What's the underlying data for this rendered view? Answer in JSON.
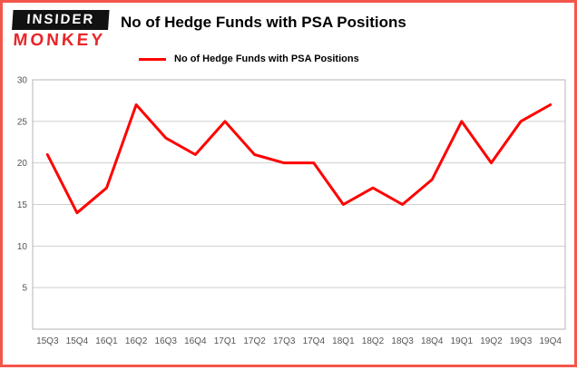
{
  "logo": {
    "top": "INSIDER",
    "bottom": "MONKEY"
  },
  "header": {
    "title": "No of Hedge Funds with PSA Positions"
  },
  "legend": {
    "label": "No of Hedge Funds with PSA Positions"
  },
  "colors": {
    "line": "#ff0000",
    "border": "#f3564a",
    "grid": "#cfcfcf",
    "plot_border": "#b5b5b5",
    "tick_text": "#555555"
  },
  "chart_data": {
    "type": "line",
    "categories": [
      "15Q3",
      "15Q4",
      "16Q1",
      "16Q2",
      "16Q3",
      "16Q4",
      "17Q1",
      "17Q2",
      "17Q3",
      "17Q4",
      "18Q1",
      "18Q2",
      "18Q3",
      "18Q4",
      "19Q1",
      "19Q2",
      "19Q3",
      "19Q4"
    ],
    "values": [
      21,
      14,
      17,
      27,
      23,
      21,
      25,
      21,
      20,
      20,
      15,
      17,
      15,
      18,
      25,
      20,
      25,
      27
    ],
    "title": "No of Hedge Funds with PSA Positions",
    "xlabel": "",
    "ylabel": "",
    "ylim": [
      0,
      30
    ],
    "yticks": [
      5,
      10,
      15,
      20,
      25,
      30
    ],
    "grid": true,
    "legend_position": "top-left",
    "line_color": "#ff0000"
  }
}
